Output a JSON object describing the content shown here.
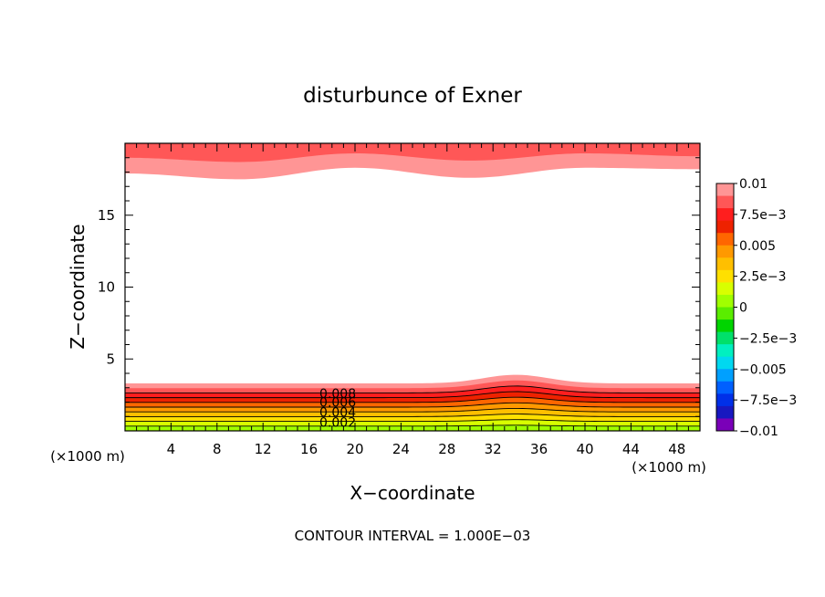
{
  "chart_data": {
    "type": "heatmap",
    "title": "disturbunce of Exner",
    "xlabel": "X−coordinate",
    "ylabel": "Z−coordinate",
    "x_unit": "(×1000 m)",
    "z_unit": "(×1000 m)",
    "footer": "CONTOUR INTERVAL = 1.000E−03",
    "xlim": [
      0,
      50
    ],
    "ylim": [
      0,
      20
    ],
    "x_ticks": [
      4,
      8,
      12,
      16,
      20,
      24,
      28,
      32,
      36,
      40,
      44,
      48
    ],
    "x_tick_labels": [
      "4",
      "8",
      "12",
      "16",
      "20",
      "24",
      "28",
      "32",
      "36",
      "40",
      "44",
      "48"
    ],
    "y_ticks": [
      5,
      10,
      15
    ],
    "y_tick_labels": [
      "5",
      "10",
      "15"
    ],
    "contour_interval": 0.001,
    "contour_labels": [
      {
        "text": "0.008",
        "x": 18.5,
        "z": 2.6
      },
      {
        "text": "0.006",
        "x": 18.5,
        "z": 2.0
      },
      {
        "text": "0.004",
        "x": 18.5,
        "z": 1.3
      },
      {
        "text": "0.002",
        "x": 18.5,
        "z": 0.6
      }
    ],
    "lower_layer": {
      "levels": [
        0.01,
        0.009,
        0.008,
        0.007,
        0.006,
        0.005,
        0.004,
        0.003,
        0.002,
        0.001
      ],
      "baseline_top_z": 3.3,
      "hill_center_x": 34,
      "hill_width_x": 4,
      "hill_height_z": 0.6
    },
    "upper_layer": {
      "bottom_z_profile": {
        "x": [
          0,
          10,
          20,
          30,
          40,
          50
        ],
        "z": [
          17.9,
          17.5,
          18.3,
          17.6,
          18.3,
          18.2
        ]
      },
      "inner_z_profile": {
        "x": [
          0,
          10,
          20,
          30,
          40,
          50
        ],
        "z": [
          19.0,
          18.7,
          19.3,
          18.8,
          19.3,
          19.1
        ]
      }
    },
    "colorbar": {
      "vmin": -0.01,
      "vmax": 0.01,
      "tick_labels": [
        "0.01",
        "7.5e−3",
        "0.005",
        "2.5e−3",
        "0",
        "−2.5e−3",
        "−0.005",
        "−7.5e−3",
        "−0.01"
      ],
      "colors": [
        "#ff9595",
        "#ff5757",
        "#ff1e1e",
        "#ee2200",
        "#ff6600",
        "#ff9900",
        "#ffbf00",
        "#ffe000",
        "#d8ff00",
        "#a0ff00",
        "#5aed00",
        "#00d400",
        "#00e06a",
        "#00f0c0",
        "#00d8f0",
        "#00a0ff",
        "#0060ff",
        "#0030e8",
        "#1818c0",
        "#7a00b8"
      ]
    }
  }
}
